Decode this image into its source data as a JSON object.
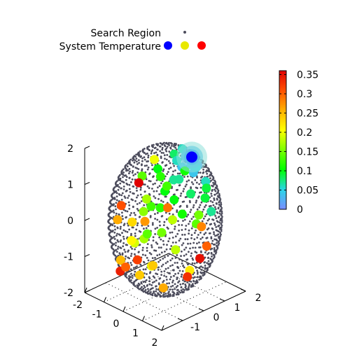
{
  "legend": {
    "search_region_label": "Search Region",
    "temperature_label": "System Temperature",
    "temperature_dot_colors": [
      "#0000ff",
      "#e8e800",
      "#ff0000"
    ]
  },
  "chart_data": {
    "type": "scatter",
    "title": "",
    "projection": "3d",
    "xlim": [
      -2,
      2
    ],
    "ylim": [
      -2,
      2
    ],
    "zlim": [
      -2,
      2
    ],
    "x_ticks": [
      "-2",
      "-1",
      "0",
      "1",
      "2"
    ],
    "y_ticks": [
      "-1",
      "0",
      "1",
      "2"
    ],
    "z_ticks": [
      "-2",
      "-1",
      "0",
      "1",
      "2"
    ],
    "grid": false,
    "legend_position": "top-left",
    "colorbar": {
      "range": [
        0,
        0.36
      ],
      "ticks": [
        "0",
        "0.05",
        "0.1",
        "0.15",
        "0.2",
        "0.25",
        "0.3",
        "0.35"
      ],
      "colors": [
        "#7a8cff",
        "#2ad6e6",
        "#00ff00",
        "#7cff00",
        "#ffff00",
        "#ffb000",
        "#ff5000",
        "#e00000"
      ]
    },
    "search_region": {
      "shape": "sphere",
      "center": [
        0,
        0,
        0
      ],
      "radius": 2,
      "color": "#4c4c5c"
    },
    "best_point": {
      "position": [
        0.4,
        0.9,
        1.6
      ],
      "temperature": 0.0,
      "color": "#0000ff"
    },
    "temperature_points": [
      {
        "position": [
          0.3,
          0.9,
          1.6
        ],
        "temperature": 0.01
      },
      {
        "position": [
          0.5,
          0.8,
          1.55
        ],
        "temperature": 0.01
      },
      {
        "position": [
          0.2,
          1.0,
          1.5
        ],
        "temperature": 0.02
      },
      {
        "position": [
          0.6,
          1.0,
          1.4
        ],
        "temperature": 0.02
      },
      {
        "position": [
          0.4,
          0.6,
          1.7
        ],
        "temperature": 0.03
      },
      {
        "position": [
          0.1,
          0.7,
          1.3
        ],
        "temperature": 0.04
      },
      {
        "position": [
          0.7,
          0.7,
          1.3
        ],
        "temperature": 0.04
      },
      {
        "position": [
          0.3,
          1.2,
          1.2
        ],
        "temperature": 0.05
      },
      {
        "position": [
          0.8,
          0.5,
          1.6
        ],
        "temperature": 0.05
      },
      {
        "position": [
          -0.1,
          0.9,
          1.7
        ],
        "temperature": 0.06
      },
      {
        "position": [
          0.9,
          1.1,
          1.0
        ],
        "temperature": 0.06
      },
      {
        "position": [
          0.0,
          0.4,
          1.0
        ],
        "temperature": 0.07
      },
      {
        "position": [
          0.5,
          0.2,
          1.2
        ],
        "temperature": 0.07
      },
      {
        "position": [
          1.0,
          0.3,
          0.9
        ],
        "temperature": 0.08
      },
      {
        "position": [
          -0.4,
          0.8,
          1.5
        ],
        "temperature": 0.08
      },
      {
        "position": [
          0.6,
          0.0,
          1.8
        ],
        "temperature": 0.06
      },
      {
        "position": [
          1.2,
          0.8,
          0.7
        ],
        "temperature": 0.09
      },
      {
        "position": [
          0.2,
          -0.2,
          0.9
        ],
        "temperature": 0.1
      },
      {
        "position": [
          -0.6,
          0.2,
          1.2
        ],
        "temperature": 0.1
      },
      {
        "position": [
          1.1,
          -0.2,
          0.5
        ],
        "temperature": 0.11
      },
      {
        "position": [
          -0.9,
          0.6,
          0.8
        ],
        "temperature": 0.12
      },
      {
        "position": [
          0.4,
          -0.6,
          0.6
        ],
        "temperature": 0.12
      },
      {
        "position": [
          -0.3,
          -0.4,
          0.4
        ],
        "temperature": 0.13
      },
      {
        "position": [
          1.4,
          0.2,
          0.2
        ],
        "temperature": 0.14
      },
      {
        "position": [
          -1.2,
          0.0,
          0.9
        ],
        "temperature": 0.14
      },
      {
        "position": [
          0.8,
          -0.9,
          0.1
        ],
        "temperature": 0.15
      },
      {
        "position": [
          -0.8,
          -0.3,
          0.1
        ],
        "temperature": 0.16
      },
      {
        "position": [
          0.1,
          -1.1,
          -0.2
        ],
        "temperature": 0.17
      },
      {
        "position": [
          -1.4,
          0.4,
          0.1
        ],
        "temperature": 0.17
      },
      {
        "position": [
          1.3,
          -0.7,
          -0.3
        ],
        "temperature": 0.18
      },
      {
        "position": [
          -0.5,
          -1.0,
          -0.5
        ],
        "temperature": 0.19
      },
      {
        "position": [
          0.6,
          -1.2,
          -0.8
        ],
        "temperature": 0.2
      },
      {
        "position": [
          -1.1,
          -0.6,
          -0.7
        ],
        "temperature": 0.21
      },
      {
        "position": [
          1.6,
          -0.3,
          -0.9
        ],
        "temperature": 0.22
      },
      {
        "position": [
          -1.5,
          -0.2,
          -0.4
        ],
        "temperature": 0.23
      },
      {
        "position": [
          0.2,
          -1.4,
          -1.1
        ],
        "temperature": 0.24
      },
      {
        "position": [
          -0.9,
          -1.3,
          -1.0
        ],
        "temperature": 0.25
      },
      {
        "position": [
          1.1,
          -1.1,
          -1.3
        ],
        "temperature": 0.26
      },
      {
        "position": [
          -1.6,
          0.5,
          -0.6
        ],
        "temperature": 0.27
      },
      {
        "position": [
          0.9,
          0.9,
          -0.2
        ],
        "temperature": 0.28
      },
      {
        "position": [
          -0.2,
          0.3,
          0.2
        ],
        "temperature": 0.29
      },
      {
        "position": [
          1.5,
          0.6,
          -0.5
        ],
        "temperature": 0.3
      },
      {
        "position": [
          -1.3,
          -0.9,
          0.3
        ],
        "temperature": 0.31
      },
      {
        "position": [
          0.3,
          -1.6,
          -0.6
        ],
        "temperature": 0.32
      },
      {
        "position": [
          1.7,
          -0.5,
          -1.0
        ],
        "temperature": 0.33
      },
      {
        "position": [
          -0.7,
          -1.5,
          -1.2
        ],
        "temperature": 0.34
      },
      {
        "position": [
          1.8,
          0.0,
          -0.6
        ],
        "temperature": 0.35
      },
      {
        "position": [
          -1.7,
          0.3,
          0.5
        ],
        "temperature": 0.36
      },
      {
        "position": [
          0.5,
          1.5,
          0.6
        ],
        "temperature": 0.09
      },
      {
        "position": [
          -0.4,
          1.3,
          0.9
        ],
        "temperature": 0.11
      },
      {
        "position": [
          0.0,
          1.6,
          -0.3
        ],
        "temperature": 0.15
      },
      {
        "position": [
          -1.0,
          1.0,
          0.4
        ],
        "temperature": 0.13
      },
      {
        "position": [
          1.3,
          1.0,
          0.3
        ],
        "temperature": 0.07
      },
      {
        "position": [
          -0.6,
          0.9,
          -0.4
        ],
        "temperature": 0.18
      },
      {
        "position": [
          0.9,
          -0.4,
          0.9
        ],
        "temperature": 0.1
      },
      {
        "position": [
          -1.0,
          0.4,
          1.3
        ],
        "temperature": 0.2
      },
      {
        "position": [
          0.7,
          -1.5,
          0.2
        ],
        "temperature": 0.14
      },
      {
        "position": [
          1.0,
          -1.5,
          -0.6
        ],
        "temperature": 0.24
      },
      {
        "position": [
          -0.2,
          -1.7,
          -0.9
        ],
        "temperature": 0.3
      },
      {
        "position": [
          -1.6,
          -0.8,
          -0.2
        ],
        "temperature": 0.26
      }
    ]
  }
}
